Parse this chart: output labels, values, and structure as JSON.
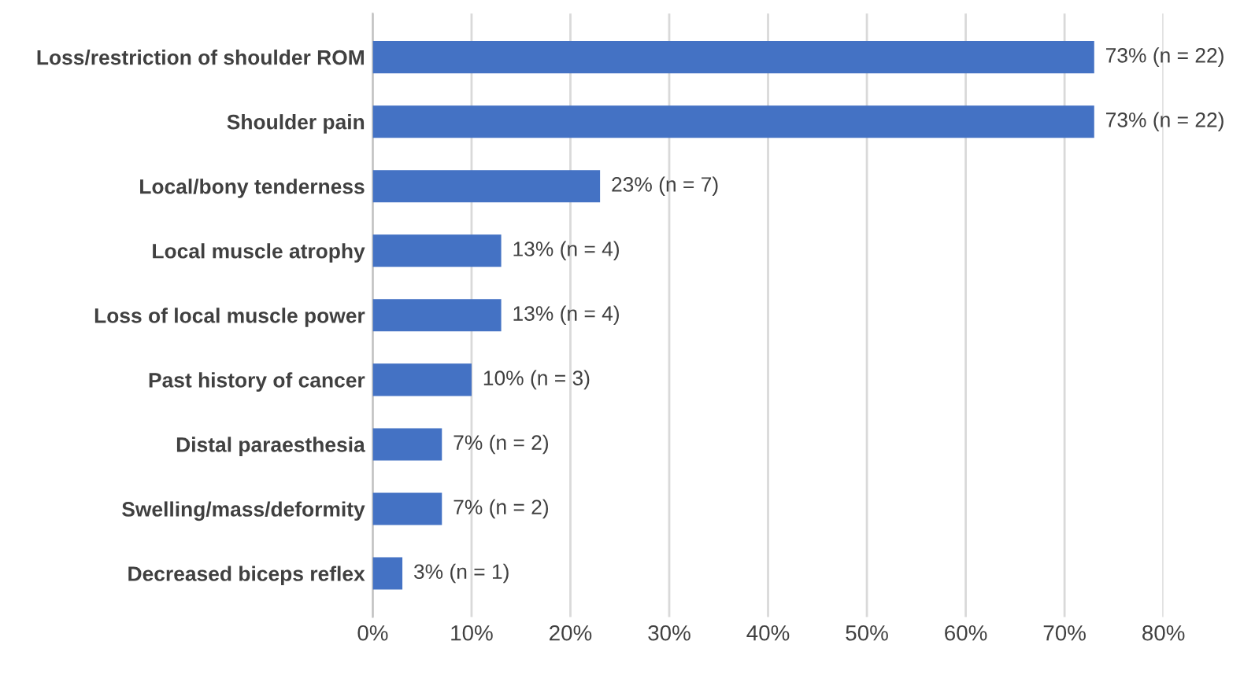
{
  "chart_data": {
    "type": "bar",
    "orientation": "horizontal",
    "categories": [
      "Loss/restriction of shoulder ROM",
      "Shoulder pain",
      "Local/bony tenderness",
      "Local muscle atrophy",
      "Loss of local muscle power",
      "Past history of cancer",
      "Distal paraesthesia",
      "Swelling/mass/deformity",
      "Decreased biceps reflex"
    ],
    "values": [
      73,
      73,
      23,
      13,
      13,
      10,
      7,
      7,
      3
    ],
    "value_labels": [
      "73% (n = 22)",
      "73% (n = 22)",
      "23% (n = 7)",
      "13% (n = 4)",
      "13% (n = 4)",
      "10% (n = 3)",
      "7% (n = 2)",
      "7% (n = 2)",
      "3% (n = 1)"
    ],
    "color": "#4472c4",
    "xlim": [
      0,
      80
    ],
    "xticks": [
      {
        "value": 0,
        "label": "0%"
      },
      {
        "value": 10,
        "label": "10%"
      },
      {
        "value": 20,
        "label": "20%"
      },
      {
        "value": 30,
        "label": "30%"
      },
      {
        "value": 40,
        "label": "40%"
      },
      {
        "value": 50,
        "label": "50%"
      },
      {
        "value": 60,
        "label": "60%"
      },
      {
        "value": 70,
        "label": "70%"
      },
      {
        "value": 80,
        "label": "80%"
      }
    ],
    "grid": "x",
    "legend": false
  }
}
